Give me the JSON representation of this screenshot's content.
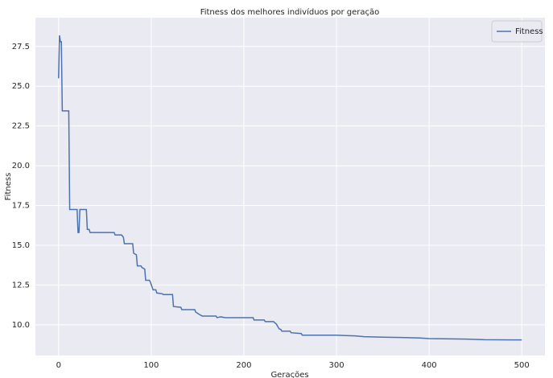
{
  "chart_data": {
    "type": "line",
    "title": "Fitness dos melhores indivíduos por geração",
    "x_label": "Gerações",
    "y_label": "Fitness",
    "x": [
      0,
      1,
      2,
      3,
      4,
      11,
      12,
      20,
      21,
      22,
      23,
      30,
      31,
      33,
      34,
      60,
      61,
      68,
      70,
      71,
      80,
      81,
      84,
      85,
      89,
      90,
      93,
      94,
      98,
      99,
      102,
      105,
      106,
      112,
      113,
      123,
      124,
      132,
      133,
      147,
      148,
      152,
      155,
      170,
      171,
      175,
      180,
      210,
      211,
      222,
      223,
      232,
      235,
      238,
      240,
      241,
      250,
      251,
      262,
      263,
      300,
      310,
      320,
      330,
      350,
      370,
      390,
      400,
      440,
      460,
      500
    ],
    "series": [
      {
        "name": "Fitness",
        "color": "#4c72b0",
        "values": [
          25.5,
          28.2,
          27.8,
          27.8,
          23.45,
          23.45,
          17.25,
          17.25,
          15.8,
          15.8,
          17.25,
          17.25,
          16.0,
          16.0,
          15.8,
          15.8,
          15.65,
          15.65,
          15.5,
          15.1,
          15.1,
          14.5,
          14.4,
          13.7,
          13.7,
          13.6,
          13.5,
          12.8,
          12.8,
          12.7,
          12.2,
          12.2,
          12.0,
          11.95,
          11.9,
          11.9,
          11.15,
          11.1,
          10.95,
          10.95,
          10.8,
          10.65,
          10.55,
          10.55,
          10.45,
          10.5,
          10.45,
          10.45,
          10.3,
          10.3,
          10.2,
          10.2,
          10.05,
          9.75,
          9.7,
          9.6,
          9.6,
          9.5,
          9.45,
          9.35,
          9.35,
          9.32,
          9.3,
          9.25,
          9.22,
          9.2,
          9.17,
          9.13,
          9.1,
          9.06,
          9.05
        ]
      }
    ],
    "xlim": [
      -25,
      525
    ],
    "ylim": [
      8.07,
      29.31
    ],
    "xticks": [
      0,
      100,
      200,
      300,
      400,
      500
    ],
    "yticks": [
      {
        "value": 10.0,
        "label": "10.0"
      },
      {
        "value": 12.5,
        "label": "12.5"
      },
      {
        "value": 15.0,
        "label": "15.0"
      },
      {
        "value": 17.5,
        "label": "17.5"
      },
      {
        "value": 20.0,
        "label": "20.0"
      },
      {
        "value": 22.5,
        "label": "22.5"
      },
      {
        "value": 25.0,
        "label": "25.0"
      },
      {
        "value": 27.5,
        "label": "27.5"
      }
    ],
    "grid": true,
    "legend": "upper right"
  }
}
